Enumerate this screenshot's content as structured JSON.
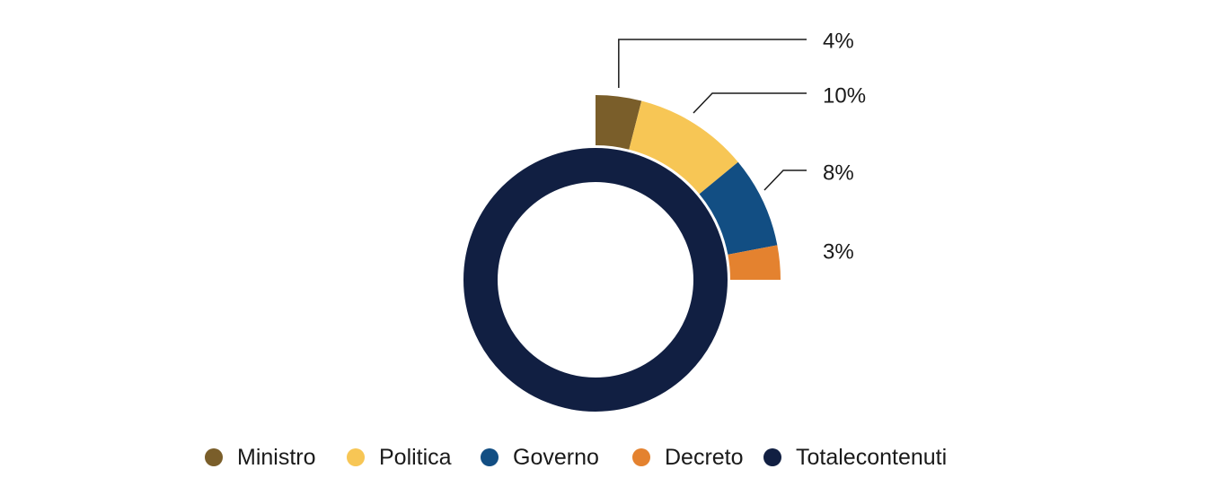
{
  "chart_data": {
    "type": "pie",
    "title": "",
    "series": [
      {
        "name": "Ministro",
        "value": 4,
        "label": "4%",
        "color": "#7a5e2a"
      },
      {
        "name": "Politica",
        "value": 10,
        "label": "10%",
        "color": "#f7c655"
      },
      {
        "name": "Governo",
        "value": 8,
        "label": "8%",
        "color": "#124e83"
      },
      {
        "name": "Decreto",
        "value": 3,
        "label": "3%",
        "color": "#e4822f"
      },
      {
        "name": "Totalecontenuti",
        "value": 100,
        "label": "",
        "color": "#111f42"
      }
    ],
    "legend_placement": "bottom"
  }
}
